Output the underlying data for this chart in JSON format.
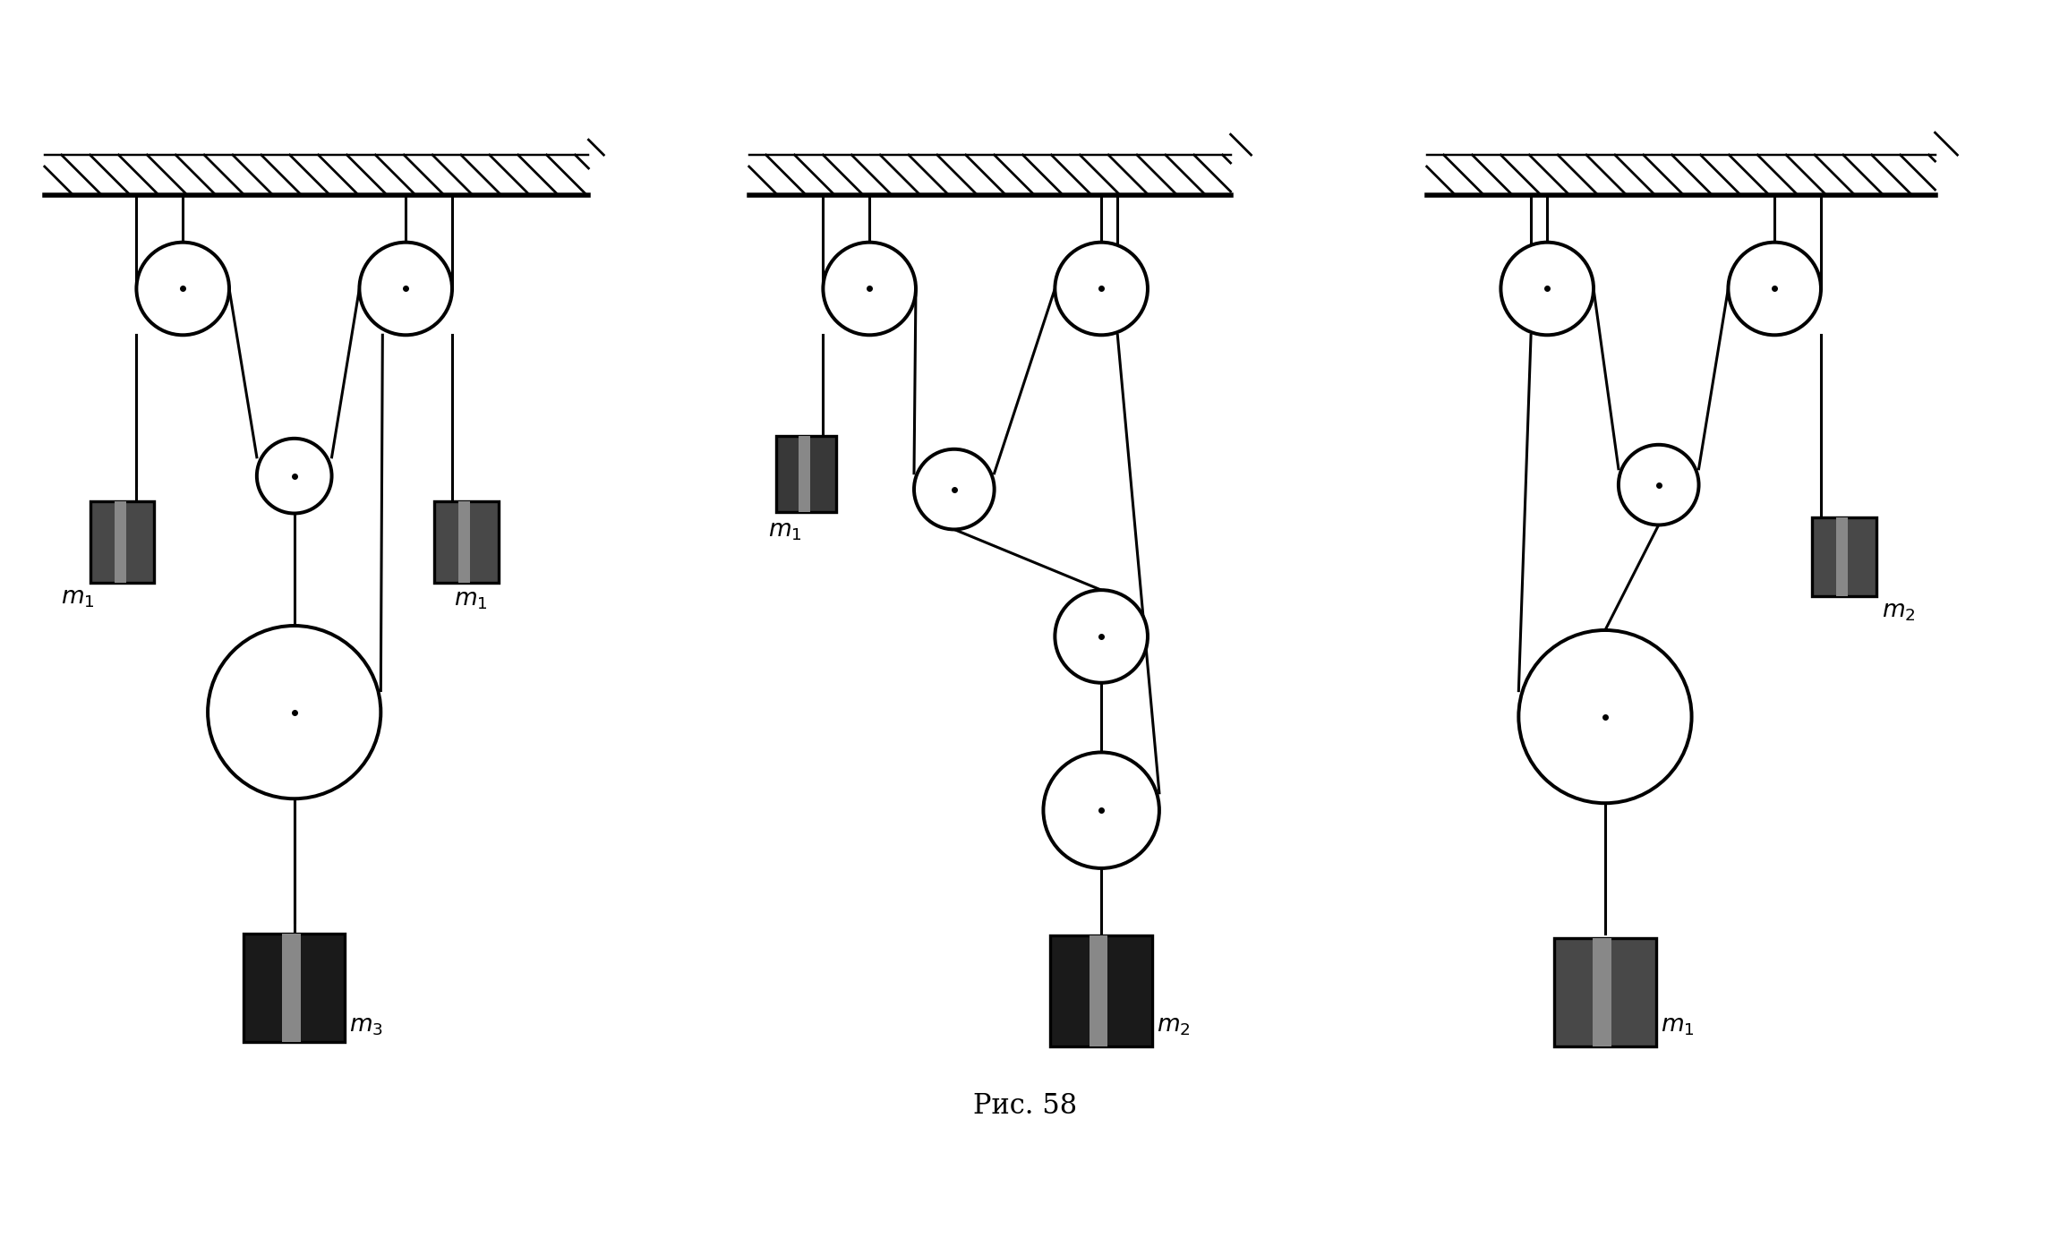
{
  "title": "Рис. 58",
  "title_fontsize": 22,
  "bg_color": "#ffffff",
  "lc": "#000000",
  "lw": 2.2,
  "fig_w": 22.91,
  "fig_h": 14.02,
  "xlim": [
    0,
    23
  ],
  "ylim": [
    0,
    11.5
  ]
}
